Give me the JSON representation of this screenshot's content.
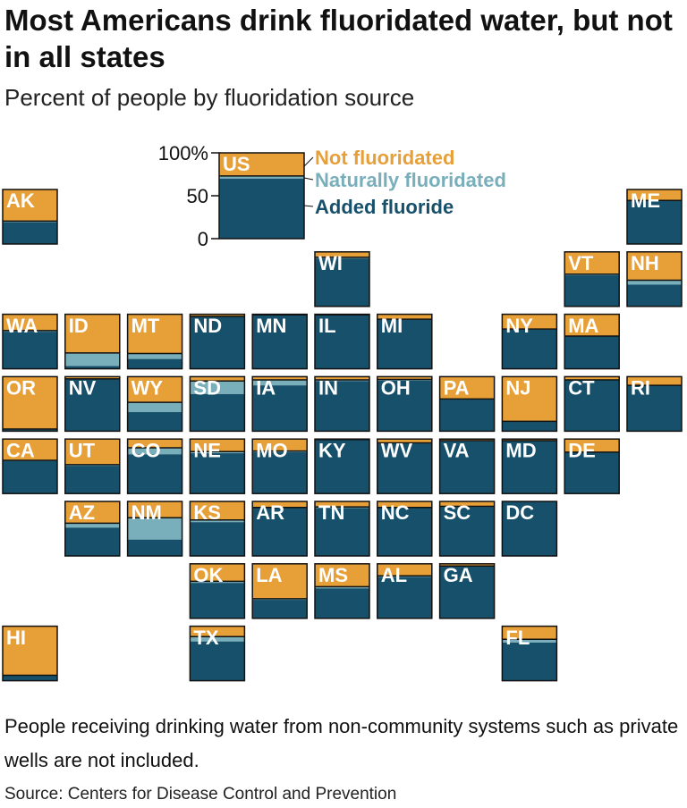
{
  "header": {
    "title": "Most Americans drink fluoridated water, but not in all states",
    "subtitle": "Percent of people by fluoridation source"
  },
  "footer": {
    "note": "People receiving drinking water from non-community systems such as private wells are not included.",
    "source": "Source: Centers for Disease Control and Prevention"
  },
  "colors": {
    "added": "#16506b",
    "natural": "#79aebb",
    "not": "#e79f37",
    "outline": "#111111"
  },
  "chart_data": {
    "type": "tile-map stacked bar",
    "y_ticks": [
      "100%",
      "50",
      "0"
    ],
    "ylim": [
      0,
      100
    ],
    "series": [
      {
        "key": "not",
        "name": "Not fluoridated"
      },
      {
        "key": "natural",
        "name": "Naturally fluoridated"
      },
      {
        "key": "added",
        "name": "Added fluoride"
      }
    ],
    "national": {
      "label": "US",
      "added": 70,
      "natural": 3,
      "not": 27
    },
    "states": [
      {
        "abbr": "AK",
        "row": 0,
        "col": 0,
        "added": 40,
        "natural": 2,
        "not": 58
      },
      {
        "abbr": "ME",
        "row": 0,
        "col": 10,
        "added": 80,
        "natural": 0,
        "not": 20
      },
      {
        "abbr": "WI",
        "row": 1,
        "col": 5,
        "added": 88,
        "natural": 2,
        "not": 10
      },
      {
        "abbr": "VT",
        "row": 1,
        "col": 9,
        "added": 57,
        "natural": 2,
        "not": 41
      },
      {
        "abbr": "NH",
        "row": 1,
        "col": 10,
        "added": 40,
        "natural": 8,
        "not": 52
      },
      {
        "abbr": "WA",
        "row": 2,
        "col": 0,
        "added": 68,
        "natural": 2,
        "not": 30
      },
      {
        "abbr": "ID",
        "row": 2,
        "col": 1,
        "added": 5,
        "natural": 24,
        "not": 71
      },
      {
        "abbr": "MT",
        "row": 2,
        "col": 2,
        "added": 18,
        "natural": 10,
        "not": 72
      },
      {
        "abbr": "ND",
        "row": 2,
        "col": 3,
        "added": 96,
        "natural": 0,
        "not": 4
      },
      {
        "abbr": "MN",
        "row": 2,
        "col": 4,
        "added": 98,
        "natural": 1,
        "not": 1
      },
      {
        "abbr": "IL",
        "row": 2,
        "col": 5,
        "added": 98,
        "natural": 1,
        "not": 1
      },
      {
        "abbr": "MI",
        "row": 2,
        "col": 6,
        "added": 90,
        "natural": 1,
        "not": 9
      },
      {
        "abbr": "NY",
        "row": 2,
        "col": 8,
        "added": 72,
        "natural": 1,
        "not": 27
      },
      {
        "abbr": "MA",
        "row": 2,
        "col": 9,
        "added": 60,
        "natural": 0,
        "not": 40
      },
      {
        "abbr": "OR",
        "row": 3,
        "col": 0,
        "added": 3,
        "natural": 1,
        "not": 96
      },
      {
        "abbr": "NV",
        "row": 3,
        "col": 1,
        "added": 95,
        "natural": 1,
        "not": 4
      },
      {
        "abbr": "WY",
        "row": 3,
        "col": 2,
        "added": 35,
        "natural": 18,
        "not": 47
      },
      {
        "abbr": "SD",
        "row": 3,
        "col": 3,
        "added": 68,
        "natural": 24,
        "not": 8
      },
      {
        "abbr": "IA",
        "row": 3,
        "col": 4,
        "added": 84,
        "natural": 10,
        "not": 6
      },
      {
        "abbr": "IN",
        "row": 3,
        "col": 5,
        "added": 92,
        "natural": 2,
        "not": 6
      },
      {
        "abbr": "OH",
        "row": 3,
        "col": 6,
        "added": 93,
        "natural": 2,
        "not": 5
      },
      {
        "abbr": "PA",
        "row": 3,
        "col": 7,
        "added": 58,
        "natural": 1,
        "not": 41
      },
      {
        "abbr": "NJ",
        "row": 3,
        "col": 8,
        "added": 17,
        "natural": 1,
        "not": 82
      },
      {
        "abbr": "CT",
        "row": 3,
        "col": 9,
        "added": 94,
        "natural": 0,
        "not": 6
      },
      {
        "abbr": "RI",
        "row": 3,
        "col": 10,
        "added": 84,
        "natural": 0,
        "not": 16
      },
      {
        "abbr": "CA",
        "row": 4,
        "col": 0,
        "added": 60,
        "natural": 1,
        "not": 39
      },
      {
        "abbr": "UT",
        "row": 4,
        "col": 1,
        "added": 51,
        "natural": 2,
        "not": 47
      },
      {
        "abbr": "CO",
        "row": 4,
        "col": 2,
        "added": 72,
        "natural": 12,
        "not": 16
      },
      {
        "abbr": "NE",
        "row": 4,
        "col": 3,
        "added": 74,
        "natural": 3,
        "not": 23
      },
      {
        "abbr": "MO",
        "row": 4,
        "col": 4,
        "added": 76,
        "natural": 2,
        "not": 22
      },
      {
        "abbr": "KY",
        "row": 4,
        "col": 5,
        "added": 99,
        "natural": 0,
        "not": 1
      },
      {
        "abbr": "WV",
        "row": 4,
        "col": 6,
        "added": 92,
        "natural": 1,
        "not": 7
      },
      {
        "abbr": "VA",
        "row": 4,
        "col": 7,
        "added": 96,
        "natural": 1,
        "not": 3
      },
      {
        "abbr": "MD",
        "row": 4,
        "col": 8,
        "added": 97,
        "natural": 0,
        "not": 3
      },
      {
        "abbr": "DE",
        "row": 4,
        "col": 9,
        "added": 75,
        "natural": 1,
        "not": 24
      },
      {
        "abbr": "AZ",
        "row": 5,
        "col": 1,
        "added": 52,
        "natural": 8,
        "not": 40
      },
      {
        "abbr": "NM",
        "row": 5,
        "col": 2,
        "added": 30,
        "natural": 40,
        "not": 30
      },
      {
        "abbr": "KS",
        "row": 5,
        "col": 3,
        "added": 62,
        "natural": 4,
        "not": 34
      },
      {
        "abbr": "AR",
        "row": 5,
        "col": 4,
        "added": 88,
        "natural": 1,
        "not": 11
      },
      {
        "abbr": "TN",
        "row": 5,
        "col": 5,
        "added": 88,
        "natural": 2,
        "not": 10
      },
      {
        "abbr": "NC",
        "row": 5,
        "col": 6,
        "added": 88,
        "natural": 1,
        "not": 11
      },
      {
        "abbr": "SC",
        "row": 5,
        "col": 7,
        "added": 90,
        "natural": 1,
        "not": 9
      },
      {
        "abbr": "DC",
        "row": 5,
        "col": 8,
        "added": 100,
        "natural": 0,
        "not": 0
      },
      {
        "abbr": "OK",
        "row": 6,
        "col": 3,
        "added": 65,
        "natural": 3,
        "not": 32
      },
      {
        "abbr": "LA",
        "row": 6,
        "col": 4,
        "added": 34,
        "natural": 2,
        "not": 64
      },
      {
        "abbr": "MS",
        "row": 6,
        "col": 5,
        "added": 55,
        "natural": 3,
        "not": 42
      },
      {
        "abbr": "AL",
        "row": 6,
        "col": 6,
        "added": 76,
        "natural": 2,
        "not": 22
      },
      {
        "abbr": "GA",
        "row": 6,
        "col": 7,
        "added": 95,
        "natural": 1,
        "not": 4
      },
      {
        "abbr": "HI",
        "row": 7,
        "col": 0,
        "added": 10,
        "natural": 0,
        "not": 90
      },
      {
        "abbr": "TX",
        "row": 7,
        "col": 3,
        "added": 72,
        "natural": 9,
        "not": 19
      },
      {
        "abbr": "FL",
        "row": 7,
        "col": 8,
        "added": 70,
        "natural": 6,
        "not": 24
      }
    ]
  }
}
